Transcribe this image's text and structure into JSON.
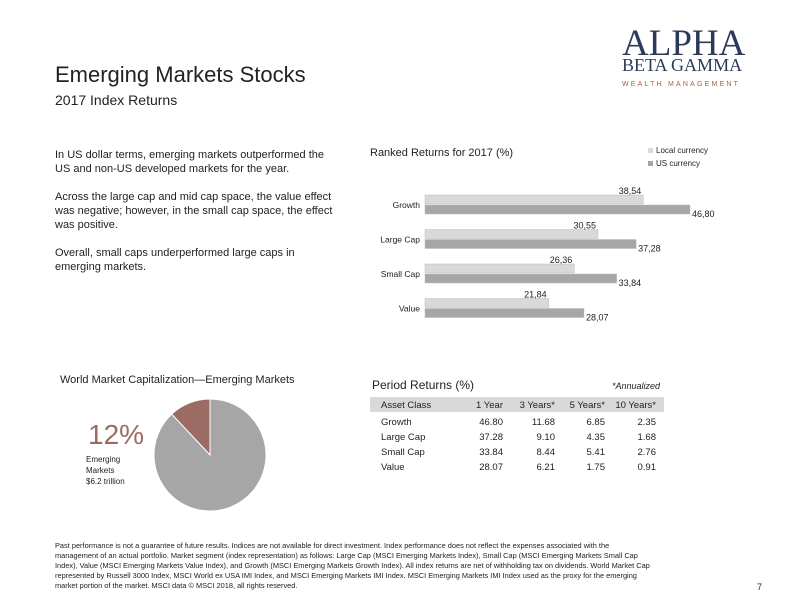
{
  "header": {
    "title": "Emerging Markets Stocks",
    "subtitle": "2017 Index Returns"
  },
  "logo": {
    "line1": "ALPHA",
    "line2": "BETA GAMMA",
    "line3": "WEALTH MANAGEMENT"
  },
  "paragraphs": [
    [
      "In US dollar terms, emerging markets outperformed the",
      "US and non-US developed markets for the year."
    ],
    [
      "Across the large cap and mid cap space, the value effect",
      "was negative; however, in the small cap space, the effect",
      "was positive."
    ],
    [
      "Overall, small caps underperformed large caps in",
      "emerging markets."
    ]
  ],
  "chart_data": [
    {
      "type": "bar",
      "orientation": "horizontal",
      "title": "Ranked Returns for 2017 (%)",
      "categories": [
        "Growth",
        "Large Cap",
        "Small Cap",
        "Value"
      ],
      "series": [
        {
          "name": "Local currency",
          "color": "#d9d9d9",
          "values": [
            38.54,
            30.55,
            26.36,
            21.84
          ],
          "value_labels": [
            "38,54",
            "30,55",
            "26,36",
            "21,84"
          ]
        },
        {
          "name": "US currency",
          "color": "#a6a6a6",
          "values": [
            46.8,
            37.28,
            33.84,
            28.07
          ],
          "value_labels": [
            "46,80",
            "37,28",
            "33,84",
            "28,07"
          ]
        }
      ],
      "legend": "top-right"
    },
    {
      "type": "pie",
      "title": "World Market Capitalization—Emerging Markets",
      "values": [
        12,
        88
      ],
      "value_labels": [
        "12%",
        null
      ],
      "colors": [
        "#9c6b63",
        "#a6a6a6"
      ],
      "annotation": [
        "Emerging",
        "Markets",
        "$6.2 trillion"
      ]
    }
  ],
  "table": {
    "title": "Period Returns (%)",
    "note": "*Annualized",
    "header": [
      "Asset Class",
      "1 Year",
      "3 Years*",
      "5 Years*",
      "10 Years*"
    ],
    "rows": [
      [
        "Growth",
        "46.80",
        "11.68",
        "6.85",
        "2.35"
      ],
      [
        "Large Cap",
        "37.28",
        "9.10",
        "4.35",
        "1.68"
      ],
      [
        "Small Cap",
        "33.84",
        "8.44",
        "5.41",
        "2.76"
      ],
      [
        "Value",
        "28.07",
        "6.21",
        "1.75",
        "0.91"
      ]
    ]
  },
  "footnote": [
    "Past performance is not a guarantee of future results. Indices are not available for direct investment. Index performance does not reflect the expenses associated with the",
    "management of an actual portfolio. Market segment (index representation) as follows: Large Cap (MSCI Emerging Markets Index), Small Cap (MSCI Emerging Markets Small Cap",
    "Index), Value (MSCI Emerging Markets Value Index), and Growth (MSCI Emerging Markets Growth Index). All index returns are net of withholding tax on dividends. World Market Cap",
    "represented by Russell 3000 Index, MSCI World ex USA IMI Index, and MSCI Emerging Markets IMI Index. MSCI Emerging Markets IMI Index used as the proxy for the emerging",
    "market portion of the market. MSCI data © MSCI 2018, all rights reserved."
  ],
  "page_number": "7"
}
